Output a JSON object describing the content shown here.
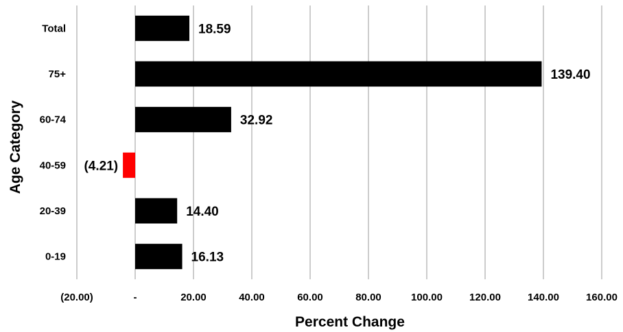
{
  "chart_data": {
    "type": "bar",
    "orientation": "horizontal",
    "categories": [
      "Total",
      "75+",
      "60-74",
      "40-59",
      "20-39",
      "0-19"
    ],
    "values": [
      18.59,
      139.4,
      32.92,
      -4.21,
      14.4,
      16.13
    ],
    "value_labels": [
      "18.59",
      "139.40",
      "32.92",
      "(4.21)",
      "14.40",
      "16.13"
    ],
    "bar_colors": [
      "#000000",
      "#000000",
      "#000000",
      "#ff0000",
      "#000000",
      "#000000"
    ],
    "xlabel": "Percent Change",
    "ylabel": "Age Category",
    "xlim": [
      -20,
      160
    ],
    "xticks": [
      -20,
      0,
      20,
      40,
      60,
      80,
      100,
      120,
      140,
      160
    ],
    "xtick_labels": [
      "(20.00)",
      "-",
      "20.00",
      "40.00",
      "60.00",
      "80.00",
      "100.00",
      "120.00",
      "140.00",
      "160.00"
    ],
    "grid": "vertical",
    "legend": "none",
    "colors": {
      "positive": "#000000",
      "negative": "#ff0000",
      "grid": "#9a9a9a"
    }
  }
}
